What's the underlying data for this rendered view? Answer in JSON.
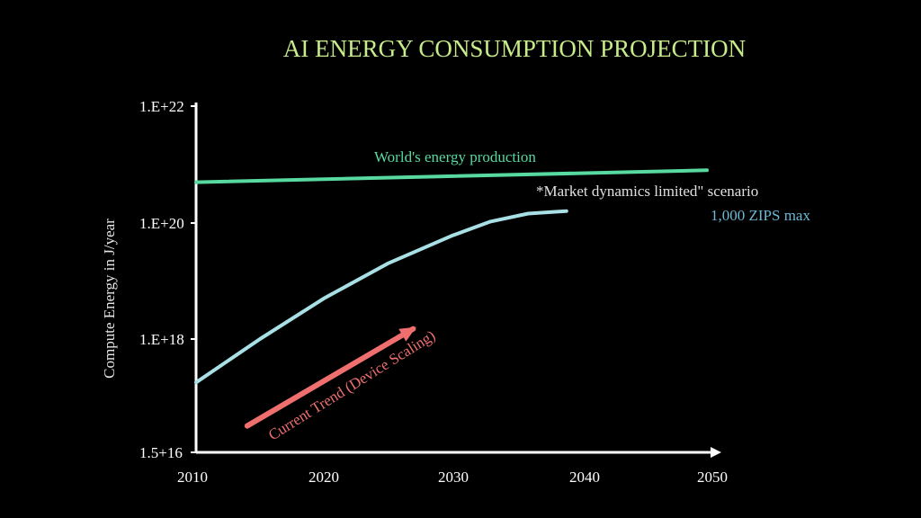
{
  "chart_data": {
    "type": "line",
    "title": "AI ENERGY CONSUMPTION PROJECTION",
    "ylabel": "Compute Energy in J/year",
    "xlabel": "",
    "y_scale": "log",
    "xlim": [
      2010,
      2050
    ],
    "x_ticks": [
      "2010",
      "2020",
      "2030",
      "2040",
      "2050"
    ],
    "y_ticks": [
      "1.5+16",
      "1.E+18",
      "1.E+20",
      "1.E+22"
    ],
    "series": [
      {
        "name": "World's energy production",
        "color": "#57d9a0",
        "x": [
          2010,
          2050
        ],
        "y": [
          5e+20,
          8e+20
        ]
      },
      {
        "name": "*Market dynamics limited\" scenario",
        "color": "#a8e0e6",
        "x": [
          2010,
          2015,
          2020,
          2025,
          2030,
          2033,
          2036,
          2038,
          2039
        ],
        "y": [
          2e+17,
          1e+18,
          5e+18,
          2e+19,
          6e+19,
          1.05e+20,
          1.45e+20,
          1.55e+20,
          1.6e+20
        ]
      },
      {
        "name": "Current Trend (Device Scaling)",
        "color": "#ef6f6f",
        "x": [
          2014,
          2027
        ],
        "y": [
          4e+16,
          1.5e+18
        ]
      }
    ],
    "annotations": {
      "world_energy": "World's energy production",
      "market": "*Market dynamics limited\" scenario",
      "zips": "1,000 ZIPS max",
      "trend": "Current Trend (Device Scaling)"
    },
    "colors": {
      "title": "#c7ec8a",
      "axis": "#ffffff",
      "world": "#57d9a0",
      "market_line": "#a8e0e6",
      "market_text": "#e0e0e0",
      "zips_text": "#6cb8d6",
      "trend": "#ef6f6f"
    },
    "grid": false
  }
}
